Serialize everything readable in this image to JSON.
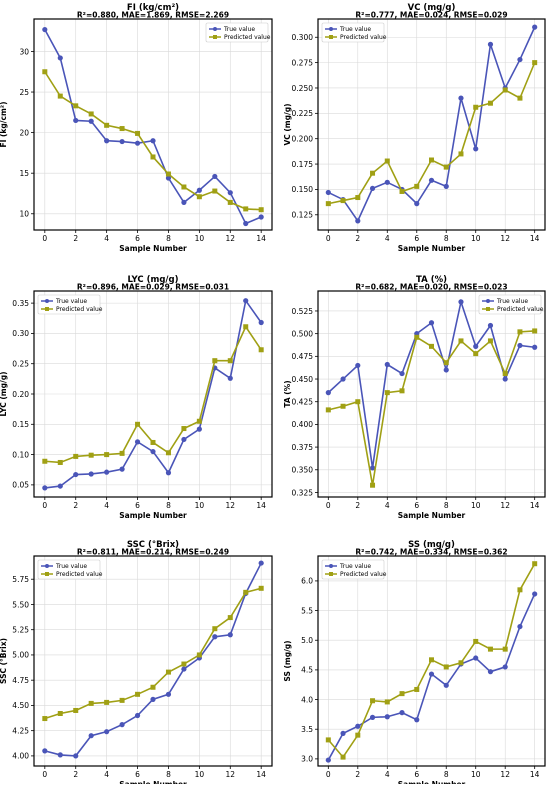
{
  "figure": {
    "colors": {
      "true": "#4a55b8",
      "pred": "#a0a014"
    },
    "legend_labels": {
      "true": "True value",
      "pred": "Predicted value"
    }
  },
  "chart_data": [
    {
      "type": "line",
      "title": "FI (kg/cm²)",
      "subtitle": "R²=0.880, MAE=1.869, RMSE=2.269",
      "xlabel": "Sample Number",
      "ylabel": "FI (kg/cm²)",
      "xlim": [
        -0.7,
        14.7
      ],
      "ylim": [
        8,
        34
      ],
      "xticks": [
        0,
        2,
        4,
        6,
        8,
        10,
        12,
        14
      ],
      "yticks": [
        10,
        15,
        20,
        25,
        30
      ],
      "ytick_labels": [
        "10",
        "15",
        "20",
        "25",
        "30"
      ],
      "grid": true,
      "legend": "top-right",
      "x": [
        0,
        1,
        2,
        3,
        4,
        5,
        6,
        7,
        8,
        9,
        10,
        11,
        12,
        13,
        14
      ],
      "series": [
        {
          "name": "True value",
          "values": [
            32.7,
            29.2,
            21.5,
            21.4,
            19.0,
            18.9,
            18.7,
            19.0,
            14.4,
            11.4,
            12.9,
            14.6,
            12.6,
            8.8,
            9.6
          ]
        },
        {
          "name": "Predicted value",
          "values": [
            27.5,
            24.5,
            23.3,
            22.3,
            20.9,
            20.5,
            19.9,
            17.0,
            14.9,
            13.3,
            12.1,
            12.8,
            11.4,
            10.6,
            10.5
          ]
        }
      ]
    },
    {
      "type": "line",
      "title": "VC (mg/g)",
      "subtitle": "R²=0.777, MAE=0.024, RMSE=0.029",
      "xlabel": "Sample Number",
      "ylabel": "VC (mg/g)",
      "xlim": [
        -0.7,
        14.7
      ],
      "ylim": [
        0.11,
        0.318
      ],
      "xticks": [
        0,
        2,
        4,
        6,
        8,
        10,
        12,
        14
      ],
      "yticks": [
        0.125,
        0.15,
        0.175,
        0.2,
        0.225,
        0.25,
        0.275,
        0.3
      ],
      "ytick_labels": [
        "0.125",
        "0.150",
        "0.175",
        "0.200",
        "0.225",
        "0.250",
        "0.275",
        "0.300"
      ],
      "grid": true,
      "legend": "top-left",
      "x": [
        0,
        1,
        2,
        3,
        4,
        5,
        6,
        7,
        8,
        9,
        10,
        11,
        12,
        13,
        14
      ],
      "series": [
        {
          "name": "True value",
          "values": [
            0.147,
            0.14,
            0.119,
            0.151,
            0.157,
            0.15,
            0.136,
            0.159,
            0.153,
            0.24,
            0.19,
            0.293,
            0.25,
            0.278,
            0.31
          ]
        },
        {
          "name": "Predicted value",
          "values": [
            0.136,
            0.139,
            0.142,
            0.166,
            0.178,
            0.148,
            0.153,
            0.179,
            0.172,
            0.185,
            0.231,
            0.235,
            0.248,
            0.24,
            0.275
          ]
        }
      ]
    },
    {
      "type": "line",
      "title": "LYC (mg/g)",
      "subtitle": "R²=0.896, MAE=0.029, RMSE=0.031",
      "xlabel": "Sample Number",
      "ylabel": "LYC (mg/g)",
      "xlim": [
        -0.7,
        14.7
      ],
      "ylim": [
        0.03,
        0.37
      ],
      "xticks": [
        0,
        2,
        4,
        6,
        8,
        10,
        12,
        14
      ],
      "yticks": [
        0.05,
        0.1,
        0.15,
        0.2,
        0.25,
        0.3,
        0.35
      ],
      "ytick_labels": [
        "0.05",
        "0.10",
        "0.15",
        "0.20",
        "0.25",
        "0.30",
        "0.35"
      ],
      "grid": true,
      "legend": "top-left",
      "x": [
        0,
        1,
        2,
        3,
        4,
        5,
        6,
        7,
        8,
        9,
        10,
        11,
        12,
        13,
        14
      ],
      "series": [
        {
          "name": "True value",
          "values": [
            0.045,
            0.048,
            0.067,
            0.068,
            0.071,
            0.076,
            0.121,
            0.105,
            0.07,
            0.125,
            0.142,
            0.243,
            0.226,
            0.354,
            0.318
          ]
        },
        {
          "name": "Predicted value",
          "values": [
            0.089,
            0.087,
            0.097,
            0.099,
            0.1,
            0.102,
            0.15,
            0.12,
            0.103,
            0.143,
            0.155,
            0.255,
            0.255,
            0.311,
            0.273
          ]
        }
      ]
    },
    {
      "type": "line",
      "title": "TA (%)",
      "subtitle": "R²=0.682, MAE=0.020, RMSE=0.023",
      "xlabel": "Sample Number",
      "ylabel": "TA (%)",
      "xlim": [
        -0.7,
        14.7
      ],
      "ylim": [
        0.32,
        0.547
      ],
      "xticks": [
        0,
        2,
        4,
        6,
        8,
        10,
        12,
        14
      ],
      "yticks": [
        0.325,
        0.35,
        0.375,
        0.4,
        0.425,
        0.45,
        0.475,
        0.5,
        0.525
      ],
      "ytick_labels": [
        "0.325",
        "0.350",
        "0.375",
        "0.400",
        "0.425",
        "0.450",
        "0.475",
        "0.500",
        "0.525"
      ],
      "grid": true,
      "legend": "top-right",
      "x": [
        0,
        1,
        2,
        3,
        4,
        5,
        6,
        7,
        8,
        9,
        10,
        11,
        12,
        13,
        14
      ],
      "series": [
        {
          "name": "True value",
          "values": [
            0.435,
            0.45,
            0.465,
            0.352,
            0.466,
            0.456,
            0.5,
            0.512,
            0.46,
            0.535,
            0.486,
            0.509,
            0.45,
            0.487,
            0.485
          ]
        },
        {
          "name": "Predicted value",
          "values": [
            0.416,
            0.42,
            0.425,
            0.333,
            0.435,
            0.437,
            0.496,
            0.486,
            0.468,
            0.492,
            0.478,
            0.492,
            0.456,
            0.502,
            0.503
          ]
        }
      ]
    },
    {
      "type": "line",
      "title": "SSC (°Brix)",
      "subtitle": "R²=0.811, MAE=0.214, RMSE=0.249",
      "xlabel": "Sample Number",
      "ylabel": "SSC (°Brix)",
      "xlim": [
        -0.7,
        14.7
      ],
      "ylim": [
        3.9,
        5.98
      ],
      "xticks": [
        0,
        2,
        4,
        6,
        8,
        10,
        12,
        14
      ],
      "yticks": [
        4.0,
        4.25,
        4.5,
        4.75,
        5.0,
        5.25,
        5.5,
        5.75
      ],
      "ytick_labels": [
        "4.00",
        "4.25",
        "4.50",
        "4.75",
        "5.00",
        "5.25",
        "5.50",
        "5.75"
      ],
      "grid": true,
      "legend": "top-left",
      "x": [
        0,
        1,
        2,
        3,
        4,
        5,
        6,
        7,
        8,
        9,
        10,
        11,
        12,
        13,
        14
      ],
      "series": [
        {
          "name": "True value",
          "values": [
            4.05,
            4.01,
            4.0,
            4.2,
            4.24,
            4.31,
            4.4,
            4.56,
            4.61,
            4.86,
            4.97,
            5.18,
            5.2,
            5.61,
            5.91
          ]
        },
        {
          "name": "Predicted value",
          "values": [
            4.37,
            4.42,
            4.45,
            4.52,
            4.53,
            4.55,
            4.61,
            4.68,
            4.83,
            4.91,
            5.0,
            5.26,
            5.37,
            5.62,
            5.66
          ]
        }
      ]
    },
    {
      "type": "line",
      "title": "SS (mg/g)",
      "subtitle": "R²=0.742, MAE=0.334, RMSE=0.362",
      "xlabel": "Sample Number",
      "ylabel": "SS (mg/g)",
      "xlim": [
        -0.7,
        14.7
      ],
      "ylim": [
        2.88,
        6.42
      ],
      "xticks": [
        0,
        2,
        4,
        6,
        8,
        10,
        12,
        14
      ],
      "yticks": [
        3.0,
        3.5,
        4.0,
        4.5,
        5.0,
        5.5,
        6.0
      ],
      "ytick_labels": [
        "3.0",
        "3.5",
        "4.0",
        "4.5",
        "5.0",
        "5.5",
        "6.0"
      ],
      "grid": true,
      "legend": "top-left",
      "x": [
        0,
        1,
        2,
        3,
        4,
        5,
        6,
        7,
        8,
        9,
        10,
        11,
        12,
        13,
        14
      ],
      "series": [
        {
          "name": "True value",
          "values": [
            2.98,
            3.43,
            3.55,
            3.7,
            3.71,
            3.78,
            3.66,
            4.43,
            4.24,
            4.6,
            4.7,
            4.47,
            4.55,
            5.23,
            5.78
          ]
        },
        {
          "name": "Predicted value",
          "values": [
            3.32,
            3.03,
            3.4,
            3.98,
            3.96,
            4.1,
            4.17,
            4.67,
            4.55,
            4.62,
            4.98,
            4.85,
            4.85,
            5.85,
            6.29
          ]
        }
      ]
    }
  ]
}
